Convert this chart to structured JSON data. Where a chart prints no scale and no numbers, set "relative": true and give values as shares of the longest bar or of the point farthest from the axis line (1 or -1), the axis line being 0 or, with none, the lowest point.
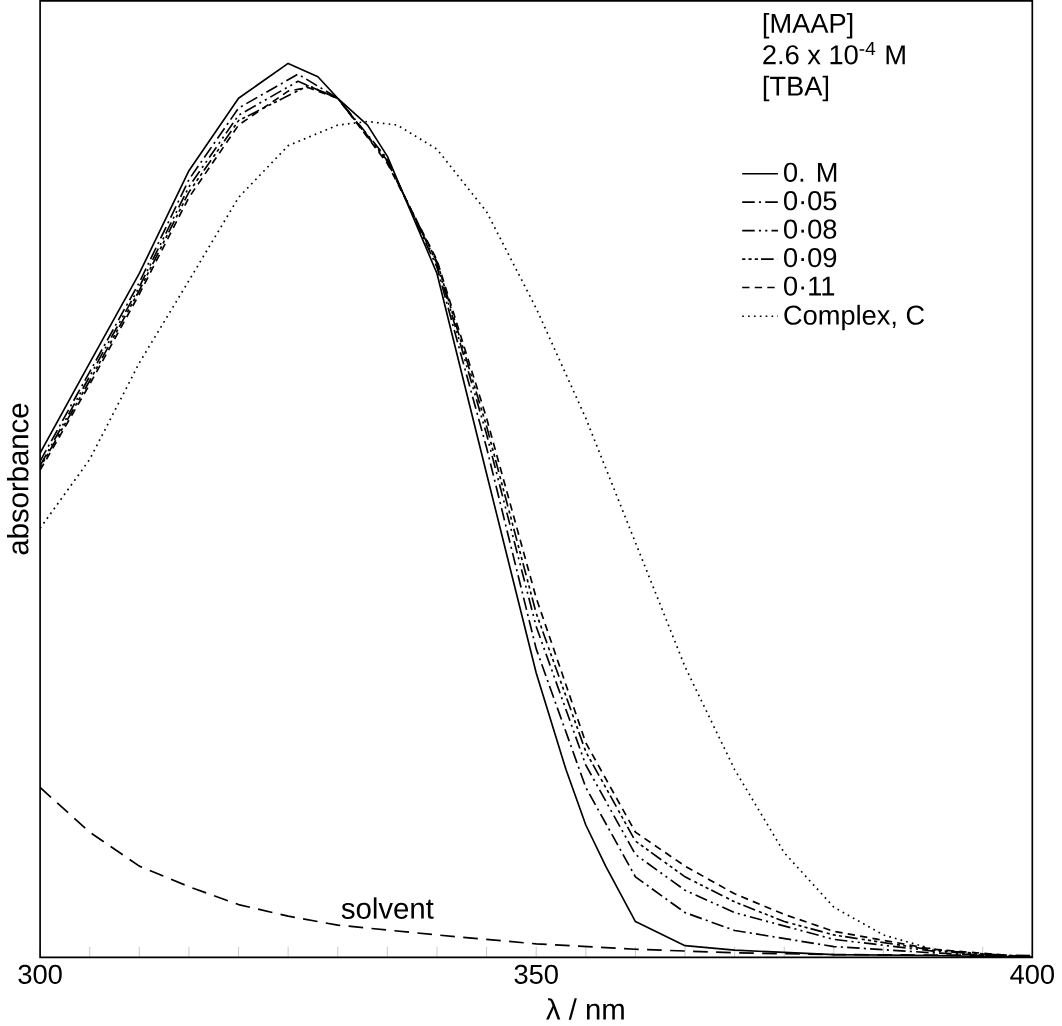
{
  "chart_data": {
    "type": "line",
    "relative": true,
    "xlabel": "λ / nm",
    "ylabel": "absorbance",
    "legend_title": "[TBA]",
    "annotations": [
      "[MAAP]",
      "2.6 x 10$^{-4}$ M",
      {
        "text": "solvent",
        "x": 335,
        "y": 0.03
      }
    ],
    "xlim": [
      300,
      400
    ],
    "xticks": [
      300,
      {
        "value": 305,
        "label": null
      },
      {
        "value": 310,
        "label": null
      },
      {
        "value": 315,
        "label": null
      },
      {
        "value": 320,
        "label": null
      },
      {
        "value": 325,
        "label": null
      },
      {
        "value": 330,
        "label": null
      },
      {
        "value": 335,
        "label": null
      },
      {
        "value": 340,
        "label": null
      },
      {
        "value": 345,
        "label": null
      },
      350,
      {
        "value": 355,
        "label": null
      },
      {
        "value": 360,
        "label": null
      },
      {
        "value": 365,
        "label": null
      },
      {
        "value": 370,
        "label": null
      },
      {
        "value": 375,
        "label": null
      },
      {
        "value": 380,
        "label": null
      },
      {
        "value": 385,
        "label": null
      },
      {
        "value": 390,
        "label": null
      },
      {
        "value": 395,
        "label": null
      },
      400
    ],
    "legend": "top right",
    "series": [
      {
        "name": "0.    M",
        "color": "#000000",
        "line_style": "solid",
        "x": [
          300,
          305,
          310,
          315,
          320,
          325,
          328,
          330,
          333,
          335,
          340,
          345,
          350,
          353,
          355,
          357,
          360,
          365,
          370,
          380,
          390,
          400
        ],
        "values": [
          0.564,
          0.665,
          0.765,
          0.88,
          0.961,
          1.0,
          0.985,
          0.961,
          0.931,
          0.896,
          0.765,
          0.541,
          0.318,
          0.21,
          0.148,
          0.102,
          0.04,
          0.013,
          0.008,
          0.003,
          0.002,
          0
        ]
      },
      {
        "name": "0·05",
        "color": "#000000",
        "line_style": "dashdot",
        "x": [
          300,
          305,
          310,
          315,
          320,
          326,
          330,
          335,
          340,
          345,
          350,
          355,
          360,
          365,
          370,
          380,
          390,
          400
        ],
        "values": [
          0.555,
          0.655,
          0.755,
          0.87,
          0.95,
          0.988,
          0.961,
          0.893,
          0.772,
          0.57,
          0.345,
          0.19,
          0.09,
          0.05,
          0.03,
          0.012,
          0.005,
          0
        ]
      },
      {
        "name": "0·08",
        "color": "#000000",
        "line_style": "dashdotdot",
        "x": [
          300,
          305,
          310,
          315,
          320,
          326,
          330,
          335,
          340,
          345,
          350,
          355,
          360,
          365,
          370,
          380,
          390,
          400
        ],
        "values": [
          0.55,
          0.65,
          0.75,
          0.862,
          0.942,
          0.98,
          0.961,
          0.891,
          0.776,
          0.585,
          0.37,
          0.215,
          0.115,
          0.075,
          0.05,
          0.02,
          0.007,
          0
        ]
      },
      {
        "name": "0·09",
        "color": "#000000",
        "line_style": "dashdotdotdot",
        "x": [
          300,
          305,
          310,
          315,
          320,
          327,
          330,
          335,
          340,
          345,
          350,
          355,
          360,
          365,
          370,
          375,
          380,
          390,
          400
        ],
        "values": [
          0.548,
          0.645,
          0.746,
          0.856,
          0.936,
          0.975,
          0.961,
          0.89,
          0.778,
          0.594,
          0.385,
          0.23,
          0.13,
          0.09,
          0.062,
          0.04,
          0.025,
          0.008,
          0
        ]
      },
      {
        "name": "0·11",
        "color": "#000000",
        "line_style": "dashed",
        "x": [
          300,
          305,
          310,
          315,
          320,
          325,
          327,
          330,
          335,
          340,
          345,
          350,
          355,
          360,
          365,
          370,
          375,
          380,
          390,
          400
        ],
        "values": [
          0.545,
          0.641,
          0.742,
          0.85,
          0.931,
          0.969,
          0.973,
          0.961,
          0.888,
          0.78,
          0.603,
          0.402,
          0.24,
          0.14,
          0.102,
          0.071,
          0.048,
          0.029,
          0.009,
          0
        ]
      },
      {
        "name": "Complex, C",
        "color": "#000000",
        "line_style": "dotted",
        "x": [
          300,
          305,
          310,
          315,
          320,
          325,
          330,
          333,
          336,
          340,
          345,
          350,
          355,
          360,
          365,
          370,
          375,
          380,
          385,
          390,
          395,
          400
        ],
        "values": [
          0.48,
          0.557,
          0.665,
          0.757,
          0.85,
          0.908,
          0.931,
          0.935,
          0.931,
          0.904,
          0.834,
          0.726,
          0.603,
          0.464,
          0.325,
          0.21,
          0.117,
          0.056,
          0.025,
          0.009,
          0.003,
          0
        ]
      },
      {
        "color": "#000000",
        "line_style": "longdashed",
        "x": [
          300,
          305,
          310,
          315,
          320,
          325,
          330,
          340,
          350,
          360,
          370,
          380,
          400
        ],
        "values": [
          0.19,
          0.14,
          0.102,
          0.079,
          0.059,
          0.046,
          0.036,
          0.025,
          0.015,
          0.009,
          0.005,
          0.003,
          0.002
        ]
      }
    ]
  }
}
